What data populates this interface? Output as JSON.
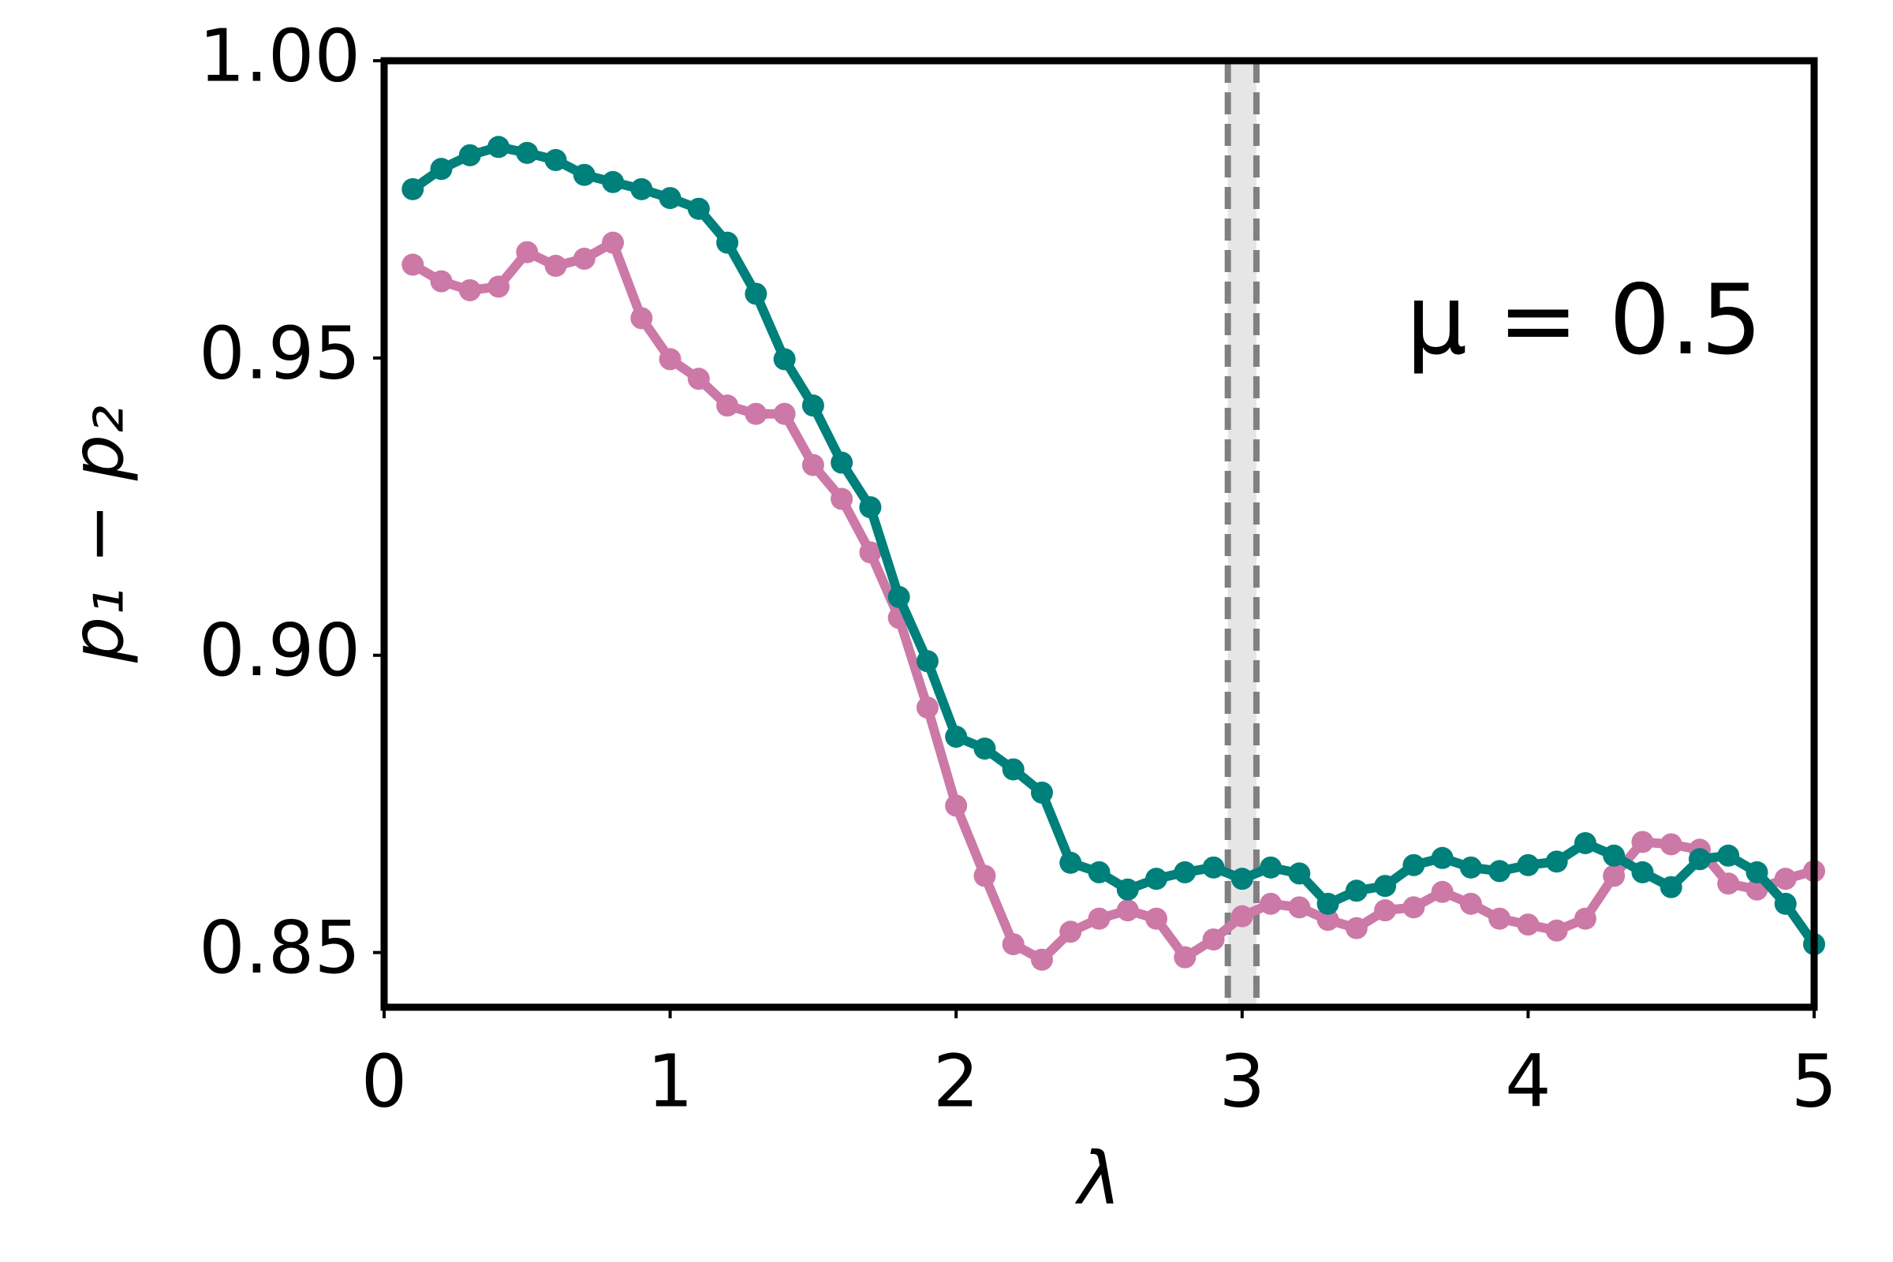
{
  "chart_data": {
    "type": "line",
    "xlabel": "λ",
    "ylabel": "p₁ − p₂",
    "annotation": "μ = 0.5",
    "x": [
      0.1,
      0.2,
      0.3,
      0.4,
      0.5,
      0.6,
      0.7,
      0.8,
      0.9,
      1.0,
      1.1,
      1.2,
      1.3,
      1.4,
      1.5,
      1.6,
      1.7,
      1.8,
      1.9,
      2.0,
      2.1,
      2.2,
      2.3,
      2.4,
      2.5,
      2.6,
      2.7,
      2.8,
      2.9,
      3.0,
      3.1,
      3.2,
      3.3,
      3.4,
      3.5,
      3.6,
      3.7,
      3.8,
      3.9,
      4.0,
      4.1,
      4.2,
      4.3,
      4.4,
      4.5,
      4.6,
      4.7,
      4.8,
      4.9,
      5.0
    ],
    "series": [
      {
        "color": "#cc79a7",
        "values": [
          0.9657,
          0.9629,
          0.9614,
          0.962,
          0.9678,
          0.9655,
          0.9667,
          0.9694,
          0.9567,
          0.9498,
          0.9465,
          0.942,
          0.9406,
          0.9406,
          0.932,
          0.9263,
          0.9173,
          0.9063,
          0.8912,
          0.8747,
          0.8629,
          0.8514,
          0.8488,
          0.8535,
          0.8557,
          0.8571,
          0.8557,
          0.8492,
          0.8522,
          0.8561,
          0.8582,
          0.8576,
          0.8555,
          0.8541,
          0.8571,
          0.8576,
          0.8602,
          0.8582,
          0.8557,
          0.8547,
          0.8537,
          0.8557,
          0.8629,
          0.8686,
          0.8682,
          0.8673,
          0.8616,
          0.8606,
          0.8624,
          0.8637
        ]
      },
      {
        "color": "#00807a",
        "values": [
          0.9784,
          0.9818,
          0.9841,
          0.9855,
          0.9845,
          0.9833,
          0.9808,
          0.9796,
          0.9784,
          0.9769,
          0.9751,
          0.9694,
          0.9608,
          0.9498,
          0.942,
          0.9324,
          0.9249,
          0.9098,
          0.899,
          0.8863,
          0.8843,
          0.8808,
          0.8769,
          0.8651,
          0.8635,
          0.8606,
          0.8624,
          0.8635,
          0.8643,
          0.8624,
          0.8643,
          0.8633,
          0.8582,
          0.8604,
          0.8612,
          0.8647,
          0.8659,
          0.8643,
          0.8637,
          0.8647,
          0.8653,
          0.8684,
          0.8663,
          0.8635,
          0.861,
          0.8657,
          0.8663,
          0.8635,
          0.8582,
          0.8514
        ]
      }
    ],
    "vlines": [
      2.95,
      3.05
    ],
    "vline_color": "#808080",
    "band_color": "#e6e6e6",
    "xlim": [
      0,
      5
    ],
    "xticks": [
      0,
      1,
      2,
      3,
      4,
      5
    ],
    "ylim": [
      0.8408,
      1.0
    ],
    "yticks": [
      {
        "value": 0.85,
        "label": "0.85"
      },
      {
        "value": 0.9,
        "label": "0.90"
      },
      {
        "value": 0.95,
        "label": "0.95"
      },
      {
        "value": 1,
        "label": "1.00"
      }
    ]
  }
}
